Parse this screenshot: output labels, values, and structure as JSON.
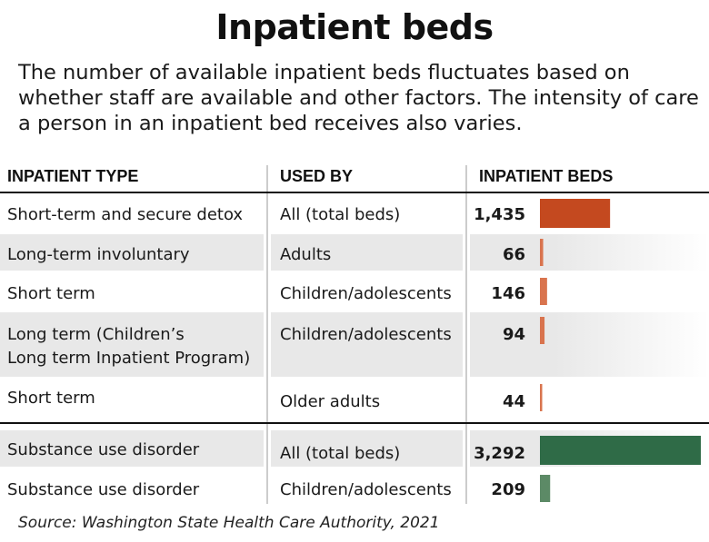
{
  "title": "Inpatient beds",
  "subtitle": "The number of available inpatient beds fluctuates based on whether staff are available and other factors. The intensity of care a person in an inpatient bed receives also varies.",
  "source": "Source: Washington State Health Care Authority, 2021",
  "chart_data": {
    "type": "table",
    "columns": [
      "INPATIENT TYPE",
      "USED BY",
      "INPATIENT BEDS"
    ],
    "rows": [
      {
        "type": [
          "Short-term and secure detox"
        ],
        "used_by": "All (total beds)",
        "beds": 1435,
        "beds_label": "1,435",
        "group": "mental"
      },
      {
        "type": [
          "Long-term involuntary"
        ],
        "used_by": "Adults",
        "beds": 66,
        "beds_label": "66",
        "group": "mental"
      },
      {
        "type": [
          "Short term"
        ],
        "used_by": "Children/adolescents",
        "beds": 146,
        "beds_label": "146",
        "group": "mental"
      },
      {
        "type": [
          "Long term (Children’s",
          "Long term Inpatient Program)"
        ],
        "used_by": "Children/adolescents",
        "beds": 94,
        "beds_label": "94",
        "group": "mental"
      },
      {
        "type": [
          "Short term"
        ],
        "used_by": "Older adults",
        "beds": 44,
        "beds_label": "44",
        "group": "mental"
      },
      {
        "type": [
          "Substance use disorder"
        ],
        "used_by": "All (total beds)",
        "beds": 3292,
        "beds_label": "3,292",
        "group": "substance"
      },
      {
        "type": [
          "Substance use disorder"
        ],
        "used_by": "Children/adolescents",
        "beds": 209,
        "beds_label": "209",
        "group": "substance"
      }
    ],
    "colors": {
      "mental_total": "#c4491f",
      "mental": "#d9744e",
      "substance_total": "#2f6b47",
      "substance": "#5c8a66",
      "row_shade": "#e8e8e8"
    }
  }
}
